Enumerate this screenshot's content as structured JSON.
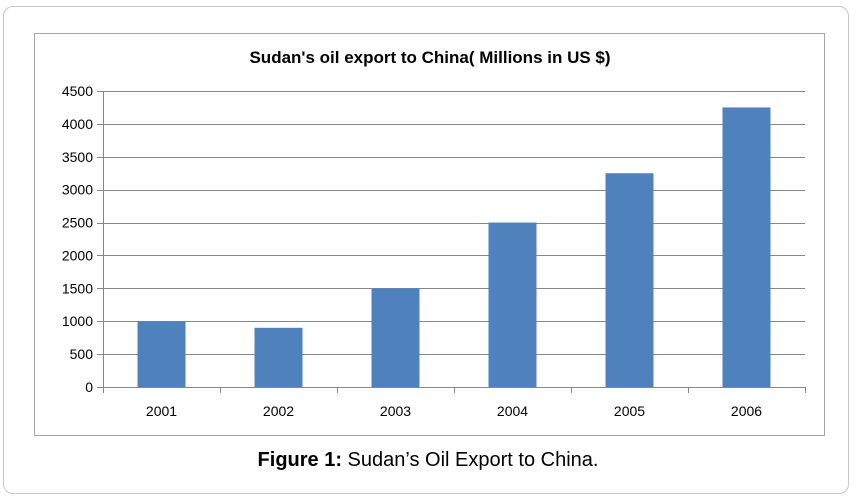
{
  "caption": {
    "label": "Figure 1:",
    "text": " Sudan’s Oil Export to China."
  },
  "chart_data": {
    "type": "bar",
    "title": "Sudan's oil export to China( Millions in US $)",
    "xlabel": "",
    "ylabel": "",
    "categories": [
      "2001",
      "2002",
      "2003",
      "2004",
      "2005",
      "2006"
    ],
    "values": [
      1000,
      900,
      1500,
      2500,
      3250,
      4250
    ],
    "ylim": [
      0,
      4500
    ],
    "yticks": [
      0,
      500,
      1000,
      1500,
      2000,
      2500,
      3000,
      3500,
      4000,
      4500
    ],
    "grid": true,
    "legend": "none",
    "bar_color": "#4f81bd",
    "grid_color": "#878787"
  }
}
